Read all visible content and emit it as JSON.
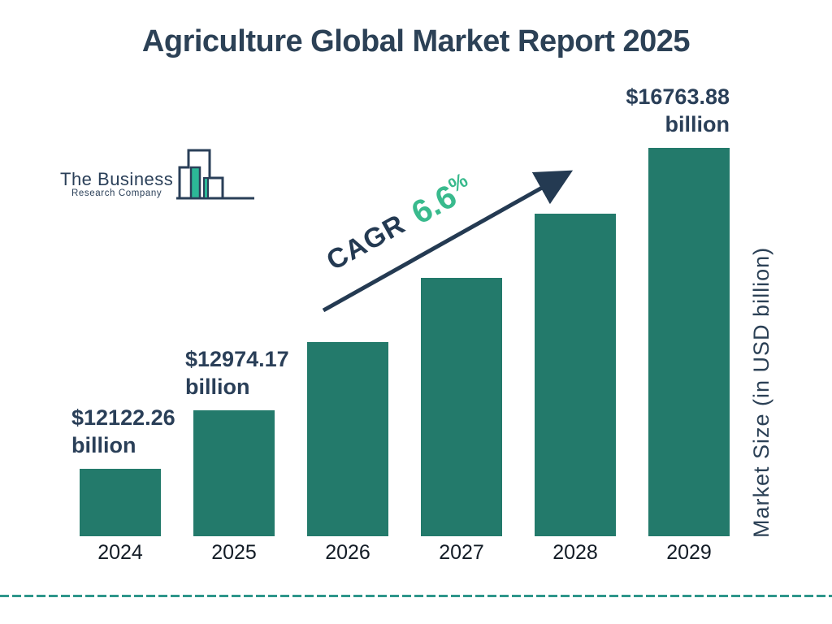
{
  "title": "Agriculture Global Market Report 2025",
  "logo": {
    "line1": "The Business",
    "line2": "Research Company"
  },
  "cagr": {
    "prefix": "CAGR",
    "value": "6.6",
    "percent": "%"
  },
  "colors": {
    "bar": "#237A6B",
    "navy_text": "#2A3F58",
    "title_navy": "#2C4156",
    "arrow_navy": "#243A52",
    "cagr_green": "#39BA8D",
    "logo_green": "#2CB897",
    "dashed_line": "#2E968B",
    "year_text": "#131C26"
  },
  "chart_data": {
    "type": "bar",
    "title": "Agriculture Global Market Report 2025",
    "ylabel": "Market Size (in USD billion)",
    "xlabel": "",
    "categories": [
      "2024",
      "2025",
      "2026",
      "2027",
      "2028",
      "2029"
    ],
    "values": [
      12122.26,
      12974.17,
      13960,
      14890,
      15820,
      16763.88
    ],
    "estimated_indices": [
      2,
      3,
      4
    ],
    "cagr_percent": 6.6,
    "ylim": [
      11150,
      17025
    ],
    "grid": false,
    "legend": false,
    "value_labels": [
      {
        "index": 0,
        "amount": "$12122.26",
        "unit": "billion",
        "align": "left"
      },
      {
        "index": 1,
        "amount": "$12974.17",
        "unit": "billion",
        "align": "left"
      },
      {
        "index": 5,
        "amount": "$16763.88",
        "unit": "billion",
        "align": "right"
      }
    ]
  }
}
